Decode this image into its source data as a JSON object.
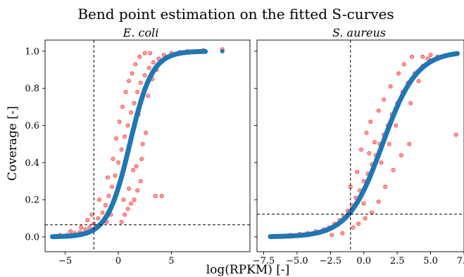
{
  "chart_data": {
    "type": "scatter",
    "title": "Bend point estimation on the fitted S-curves",
    "xlabel": "log(RPKM) [-]",
    "ylabel": "Coverage [-]",
    "sharey": true,
    "ylim": [
      -0.08,
      1.06
    ],
    "yticks": [
      0.0,
      0.2,
      0.4,
      0.6,
      0.8,
      1.0
    ],
    "ytick_labels": [
      "0.0",
      "0.2",
      "0.4",
      "0.6",
      "0.8",
      "1.0"
    ],
    "colors": {
      "observed": "#ff0000",
      "fitted": "#1f77b4",
      "bend_lines": "#000000"
    },
    "panels": [
      {
        "name": "ecoli",
        "title": "E. coli",
        "xlim": [
          -6.9,
          12.4
        ],
        "xticks": [
          -5,
          0,
          5
        ],
        "xtick_labels": [
          "−5",
          "0",
          "5"
        ],
        "bend_point": {
          "x": -2.3,
          "y": 0.065
        },
        "fit": {
          "x0": 1.08,
          "k": 0.95,
          "xmin": -6.2,
          "xmax": 8.2
        },
        "observed_points": [
          [
            -6.2,
            0.0
          ],
          [
            -5.5,
            0.01
          ],
          [
            -4.8,
            0.01
          ],
          [
            -4.1,
            0.02
          ],
          [
            -3.6,
            0.025
          ],
          [
            -3.1,
            0.04
          ],
          [
            -2.7,
            0.05
          ],
          [
            -2.3,
            0.07
          ],
          [
            -1.9,
            0.1
          ],
          [
            -1.5,
            0.13
          ],
          [
            -1.2,
            0.17
          ],
          [
            -0.9,
            0.22
          ],
          [
            -0.6,
            0.27
          ],
          [
            -0.3,
            0.33
          ],
          [
            0.0,
            0.4
          ],
          [
            0.3,
            0.47
          ],
          [
            0.6,
            0.54
          ],
          [
            0.9,
            0.6
          ],
          [
            1.2,
            0.67
          ],
          [
            1.5,
            0.72
          ],
          [
            1.8,
            0.78
          ],
          [
            2.1,
            0.83
          ],
          [
            2.5,
            0.87
          ],
          [
            2.9,
            0.91
          ],
          [
            3.3,
            0.94
          ],
          [
            3.8,
            0.96
          ],
          [
            4.3,
            0.98
          ],
          [
            5.0,
            0.99
          ],
          [
            5.8,
            0.995
          ],
          [
            6.5,
            1.0
          ],
          [
            7.2,
            1.0
          ],
          [
            8.0,
            1.005
          ],
          [
            0.3,
            0.08
          ],
          [
            0.6,
            0.12
          ],
          [
            0.9,
            0.15
          ],
          [
            1.2,
            0.18
          ],
          [
            1.5,
            0.2
          ],
          [
            1.8,
            0.25
          ],
          [
            2.1,
            0.3
          ],
          [
            1.4,
            0.36
          ],
          [
            2.3,
            0.5
          ],
          [
            2.6,
            0.56
          ],
          [
            2.2,
            0.42
          ],
          [
            1.7,
            0.38
          ],
          [
            1.0,
            0.26
          ],
          [
            0.5,
            0.2
          ],
          [
            -1.8,
            0.2
          ],
          [
            -1.0,
            0.32
          ],
          [
            -0.5,
            0.42
          ],
          [
            -0.2,
            0.53
          ],
          [
            0.1,
            0.62
          ],
          [
            0.4,
            0.7
          ],
          [
            0.7,
            0.78
          ],
          [
            1.0,
            0.84
          ],
          [
            1.3,
            0.88
          ],
          [
            1.6,
            0.93
          ],
          [
            2.0,
            0.97
          ],
          [
            2.5,
            0.99
          ],
          [
            3.0,
            0.99
          ],
          [
            -3.5,
            0.05
          ],
          [
            -2.9,
            0.09
          ],
          [
            -2.5,
            0.12
          ],
          [
            -4.5,
            0.03
          ],
          [
            -1.1,
            0.08
          ],
          [
            -0.7,
            0.12
          ],
          [
            3.2,
            0.85
          ],
          [
            3.6,
            0.9
          ],
          [
            2.8,
            0.76
          ],
          [
            1.9,
            0.66
          ],
          [
            1.1,
            0.5
          ],
          [
            0.2,
            0.3
          ],
          [
            3.5,
            0.22
          ],
          [
            4.1,
            0.22
          ],
          [
            9.8,
            1.01
          ]
        ],
        "fitted_points_x": [
          -6.2,
          -5.8,
          -5.4,
          -5.0,
          -4.6,
          -4.2,
          -3.8,
          -3.4,
          -3.0,
          -2.6,
          -2.2,
          -1.8,
          -1.4,
          -1.0,
          -0.6,
          -0.2,
          0.2,
          0.6,
          1.0,
          1.4,
          1.8,
          2.2,
          2.6,
          3.0,
          3.4,
          3.8,
          4.2,
          4.6,
          5.0,
          5.4,
          5.8,
          6.2,
          6.6,
          7.0,
          7.4,
          7.8,
          8.2,
          9.8
        ]
      },
      {
        "name": "saureus",
        "title": "S. aureus",
        "xlim": [
          -8.0,
          7.5
        ],
        "xticks": [
          -7.5,
          -5.0,
          -2.5,
          0.0,
          2.5,
          5.0,
          7.5
        ],
        "xtick_labels": [
          "−7.5",
          "−5.0",
          "−2.5",
          "0.0",
          "2.5",
          "5.0",
          "7.5"
        ],
        "bend_point": {
          "x": -1.0,
          "y": 0.122
        },
        "fit": {
          "x0": 1.4,
          "k": 0.78,
          "xmin": -7.0,
          "xmax": 7.0
        },
        "observed_points": [
          [
            -7.0,
            0.0
          ],
          [
            -6.2,
            0.005
          ],
          [
            -5.5,
            0.01
          ],
          [
            -4.8,
            0.015
          ],
          [
            -4.2,
            0.02
          ],
          [
            -3.6,
            0.03
          ],
          [
            -3.0,
            0.04
          ],
          [
            -2.6,
            0.05
          ],
          [
            -2.2,
            0.07
          ],
          [
            -1.8,
            0.09
          ],
          [
            -1.5,
            0.11
          ],
          [
            -1.2,
            0.14
          ],
          [
            -0.9,
            0.17
          ],
          [
            -0.6,
            0.21
          ],
          [
            -0.3,
            0.25
          ],
          [
            0.0,
            0.3
          ],
          [
            0.3,
            0.34
          ],
          [
            0.6,
            0.39
          ],
          [
            0.9,
            0.44
          ],
          [
            1.2,
            0.5
          ],
          [
            1.5,
            0.55
          ],
          [
            1.8,
            0.6
          ],
          [
            2.1,
            0.66
          ],
          [
            2.5,
            0.72
          ],
          [
            2.9,
            0.78
          ],
          [
            3.3,
            0.83
          ],
          [
            3.8,
            0.88
          ],
          [
            4.4,
            0.92
          ],
          [
            5.0,
            0.95
          ],
          [
            5.5,
            0.97
          ],
          [
            -0.2,
            0.47
          ],
          [
            0.2,
            0.56
          ],
          [
            0.5,
            0.62
          ],
          [
            0.8,
            0.51
          ],
          [
            1.1,
            0.68
          ],
          [
            1.5,
            0.74
          ],
          [
            2.0,
            0.81
          ],
          [
            2.6,
            0.88
          ],
          [
            3.0,
            0.93
          ],
          [
            3.6,
            0.97
          ],
          [
            4.4,
            0.97
          ],
          [
            5.0,
            0.98
          ],
          [
            4.8,
            0.96
          ],
          [
            -0.8,
            0.05
          ],
          [
            -0.4,
            0.07
          ],
          [
            0.1,
            0.1
          ],
          [
            0.6,
            0.13
          ],
          [
            1.1,
            0.19
          ],
          [
            1.6,
            0.27
          ],
          [
            2.2,
            0.36
          ],
          [
            2.8,
            0.44
          ],
          [
            3.4,
            0.5
          ],
          [
            -1.6,
            0.02
          ],
          [
            -2.4,
            0.01
          ],
          [
            -0.5,
            0.35
          ],
          [
            0.4,
            0.45
          ],
          [
            1.3,
            0.4
          ],
          [
            1.9,
            0.5
          ],
          [
            -1.0,
            0.27
          ],
          [
            0.0,
            0.18
          ],
          [
            6.9,
            0.55
          ],
          [
            3.5,
            0.72
          ],
          [
            4.1,
            0.84
          ],
          [
            2.4,
            0.6
          ]
        ],
        "fitted_points_x": [
          -7.0,
          -6.6,
          -6.2,
          -5.8,
          -5.4,
          -5.0,
          -4.6,
          -4.2,
          -3.8,
          -3.4,
          -3.0,
          -2.6,
          -2.2,
          -1.8,
          -1.4,
          -1.0,
          -0.6,
          -0.2,
          0.2,
          0.6,
          1.0,
          1.4,
          1.8,
          2.2,
          2.6,
          3.0,
          3.4,
          3.8,
          4.2,
          4.6,
          5.0,
          5.4,
          5.8,
          6.2,
          6.6,
          7.0
        ]
      }
    ]
  }
}
